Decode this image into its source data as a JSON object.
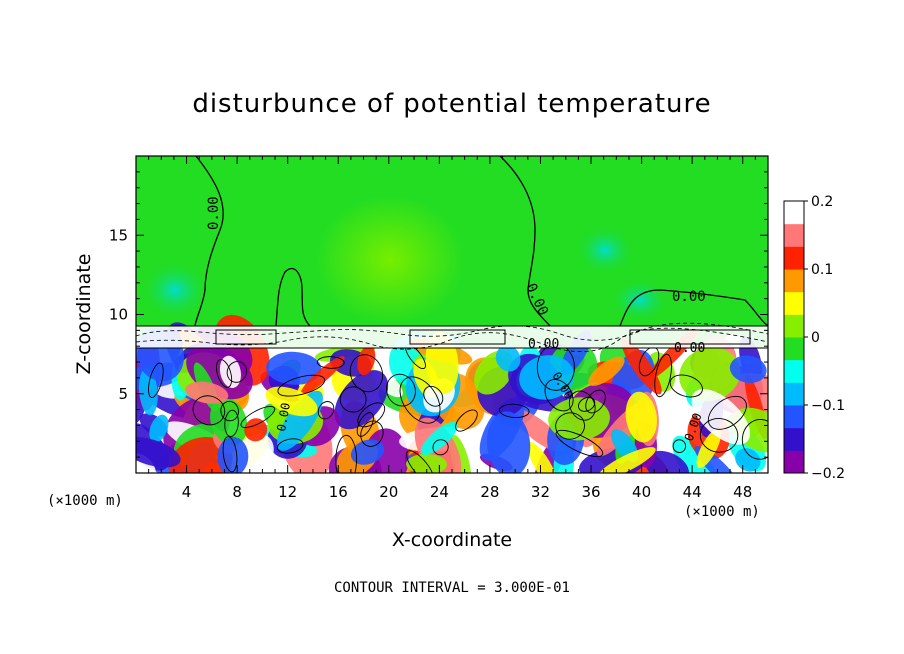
{
  "chart_data": {
    "type": "heatmap",
    "title": "disturbunce of potential temperature",
    "xlabel": "X-coordinate",
    "ylabel": "Z-coordinate",
    "x_unit_left": "(×1000 m)",
    "x_unit_right": "(×1000 m)",
    "x_ticks": [
      4,
      8,
      12,
      16,
      20,
      24,
      28,
      32,
      36,
      40,
      44,
      48
    ],
    "y_ticks": [
      5,
      10,
      15
    ],
    "xlim": [
      0,
      50
    ],
    "ylim": [
      0,
      20
    ],
    "colorbar_ticks": [
      "0.2",
      "0.1",
      "0",
      "−0.1",
      "−0.2"
    ],
    "colorbar_range": [
      -0.2,
      0.2
    ],
    "colors": {
      "background_field": "#22dd22",
      "colormap": [
        "#8800aa",
        "#3311cc",
        "#2255ff",
        "#00bbff",
        "#00ffee",
        "#22dd22",
        "#88ee00",
        "#ffff00",
        "#ff9900",
        "#ff2200",
        "#ff7777",
        "#ffffff"
      ]
    },
    "contour_labels": [
      "0.00",
      "0.00",
      "0.00",
      "0.00",
      "0.00",
      "0.00",
      "0.00",
      "0.00"
    ],
    "annotation": "CONTOUR INTERVAL = 3.000E-01"
  }
}
